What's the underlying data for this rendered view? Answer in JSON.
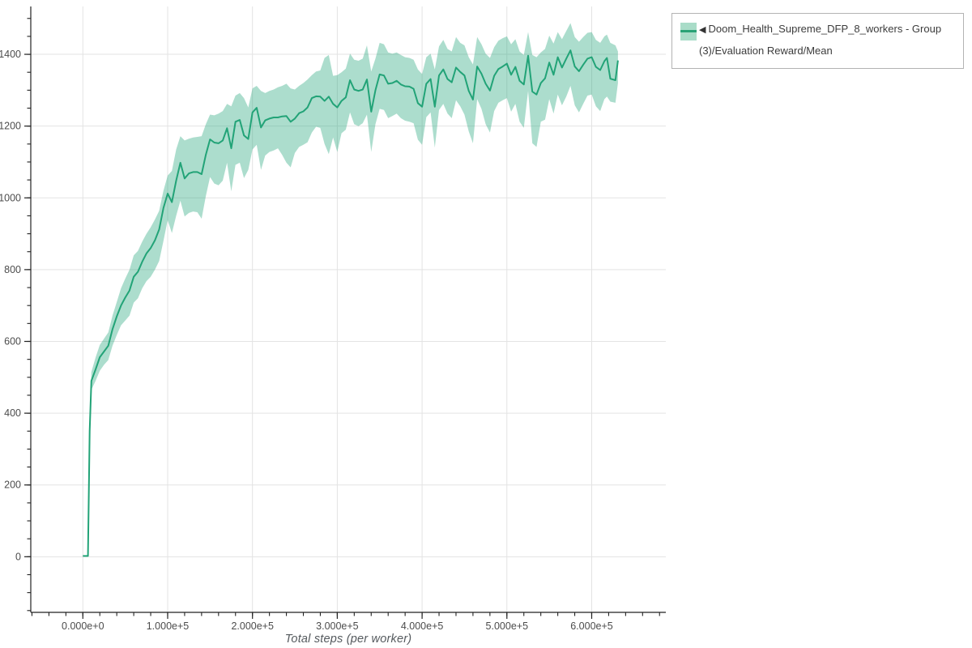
{
  "window": {
    "background": "#ffffff"
  },
  "legend": {
    "marker": "◀",
    "label": "Doom_Health_Supreme_DFP_8_workers - Group(3)/Evaluation Reward/Mean",
    "swatch_band_color": "#a9dcc8",
    "swatch_line_color": "#2aa276",
    "border_color": "#b3b3b3"
  },
  "chart_data": {
    "type": "line",
    "title": "",
    "xlabel": "Total steps (per worker)",
    "ylabel": "",
    "grid": true,
    "legend_position": "top-right-outside",
    "line_color": "#22a377",
    "band_color": "#26a67c",
    "band_opacity": 0.38,
    "grid_color": "#e3e3e3",
    "axis_color": "#222222",
    "tick_label_color": "#4c4c4c",
    "xlim": [
      -61400,
      687400
    ],
    "ylim": [
      -155,
      1522
    ],
    "x_minor_step": 20000,
    "y_minor_step": 50,
    "x_major_ticks": {
      "values": [
        0,
        100000,
        200000,
        300000,
        400000,
        500000,
        600000
      ],
      "labels": [
        "0.000e+0",
        "1.000e+5",
        "2.000e+5",
        "3.000e+5",
        "4.000e+5",
        "5.000e+5",
        "6.000e+5"
      ]
    },
    "y_major_ticks": {
      "values": [
        0,
        200,
        400,
        600,
        800,
        1000,
        1200,
        1400
      ],
      "labels": [
        "0",
        "200",
        "400",
        "600",
        "800",
        "1000",
        "1200",
        "1400"
      ]
    },
    "series": [
      {
        "name": "Doom_Health_Supreme_DFP_8_workers - Group(3)/Evaluation Reward/Mean",
        "x": [
          0,
          4000,
          6000,
          8000,
          10000,
          15000,
          20000,
          25000,
          30000,
          35000,
          40000,
          45000,
          50000,
          55000,
          60000,
          65000,
          70000,
          75000,
          80000,
          85000,
          90000,
          95000,
          100000,
          105000,
          110000,
          115000,
          120000,
          125000,
          130000,
          135000,
          140000,
          145000,
          150000,
          155000,
          160000,
          165000,
          170000,
          175000,
          180000,
          185000,
          190000,
          195000,
          200000,
          205000,
          210000,
          215000,
          220000,
          225000,
          230000,
          235000,
          240000,
          245000,
          250000,
          255000,
          260000,
          265000,
          270000,
          275000,
          280000,
          285000,
          290000,
          295000,
          300000,
          305000,
          310000,
          315000,
          320000,
          325000,
          330000,
          335000,
          340000,
          345000,
          350000,
          355000,
          360000,
          365000,
          370000,
          375000,
          380000,
          385000,
          390000,
          395000,
          400000,
          405000,
          410000,
          415000,
          420000,
          425000,
          430000,
          435000,
          440000,
          445000,
          450000,
          455000,
          460000,
          465000,
          470000,
          475000,
          480000,
          485000,
          490000,
          495000,
          500000,
          505000,
          510000,
          515000,
          520000,
          525000,
          530000,
          535000,
          540000,
          545000,
          550000,
          555000,
          560000,
          565000,
          570000,
          575000,
          580000,
          585000,
          590000,
          595000,
          600000,
          605000,
          610000,
          615000,
          618000,
          622000,
          628000,
          631000
        ],
        "mean": [
          2,
          2,
          2,
          350,
          490,
          522,
          556,
          572,
          588,
          634,
          670,
          700,
          722,
          742,
          780,
          794,
          822,
          845,
          860,
          882,
          912,
          972,
          1012,
          988,
          1048,
          1098,
          1054,
          1068,
          1072,
          1072,
          1066,
          1120,
          1163,
          1154,
          1152,
          1160,
          1194,
          1138,
          1212,
          1217,
          1174,
          1164,
          1238,
          1251,
          1196,
          1216,
          1221,
          1224,
          1224,
          1227,
          1228,
          1212,
          1221,
          1236,
          1241,
          1252,
          1278,
          1283,
          1282,
          1270,
          1282,
          1262,
          1252,
          1270,
          1280,
          1328,
          1302,
          1298,
          1302,
          1330,
          1240,
          1300,
          1344,
          1341,
          1318,
          1320,
          1326,
          1316,
          1311,
          1310,
          1304,
          1264,
          1254,
          1318,
          1331,
          1254,
          1341,
          1358,
          1331,
          1322,
          1363,
          1351,
          1341,
          1298,
          1274,
          1366,
          1346,
          1318,
          1299,
          1340,
          1359,
          1366,
          1374,
          1343,
          1365,
          1326,
          1316,
          1396,
          1296,
          1288,
          1320,
          1333,
          1377,
          1343,
          1392,
          1363,
          1388,
          1411,
          1366,
          1353,
          1371,
          1388,
          1392,
          1365,
          1356,
          1381,
          1390,
          1332,
          1328,
          1383
        ],
        "lo": [
          2,
          2,
          2,
          330,
          465,
          490,
          518,
          535,
          548,
          588,
          618,
          645,
          658,
          672,
          708,
          720,
          748,
          768,
          780,
          800,
          824,
          880,
          938,
          902,
          950,
          992,
          948,
          958,
          962,
          960,
          942,
          1005,
          1058,
          1040,
          1035,
          1048,
          1098,
          1018,
          1092,
          1098,
          1055,
          1078,
          1135,
          1148,
          1078,
          1118,
          1128,
          1132,
          1138,
          1120,
          1098,
          1085,
          1125,
          1142,
          1148,
          1155,
          1182,
          1198,
          1195,
          1150,
          1122,
          1168,
          1128,
          1180,
          1190,
          1238,
          1205,
          1200,
          1208,
          1232,
          1128,
          1205,
          1248,
          1245,
          1222,
          1228,
          1235,
          1222,
          1215,
          1212,
          1208,
          1162,
          1148,
          1225,
          1238,
          1140,
          1245,
          1262,
          1235,
          1222,
          1272,
          1255,
          1232,
          1185,
          1152,
          1275,
          1248,
          1205,
          1182,
          1242,
          1265,
          1272,
          1278,
          1240,
          1262,
          1212,
          1195,
          1298,
          1152,
          1142,
          1212,
          1218,
          1275,
          1235,
          1288,
          1258,
          1282,
          1312,
          1258,
          1238,
          1262,
          1285,
          1288,
          1255,
          1242,
          1275,
          1282,
          1268,
          1265,
          1320
        ],
        "hi": [
          2,
          2,
          2,
          370,
          515,
          555,
          590,
          608,
          625,
          672,
          710,
          748,
          775,
          800,
          840,
          852,
          878,
          900,
          918,
          940,
          964,
          1020,
          1062,
          1075,
          1135,
          1172,
          1160,
          1165,
          1168,
          1170,
          1172,
          1205,
          1232,
          1230,
          1235,
          1242,
          1262,
          1255,
          1285,
          1292,
          1278,
          1252,
          1305,
          1312,
          1298,
          1292,
          1298,
          1302,
          1308,
          1312,
          1318,
          1305,
          1302,
          1312,
          1320,
          1330,
          1342,
          1352,
          1355,
          1390,
          1398,
          1340,
          1342,
          1350,
          1360,
          1402,
          1385,
          1382,
          1388,
          1425,
          1352,
          1388,
          1432,
          1428,
          1405,
          1402,
          1405,
          1398,
          1392,
          1390,
          1385,
          1358,
          1345,
          1392,
          1402,
          1358,
          1422,
          1440,
          1415,
          1408,
          1448,
          1432,
          1425,
          1392,
          1372,
          1448,
          1428,
          1402,
          1390,
          1420,
          1438,
          1445,
          1450,
          1428,
          1442,
          1408,
          1398,
          1462,
          1398,
          1392,
          1405,
          1415,
          1452,
          1430,
          1462,
          1442,
          1465,
          1487,
          1448,
          1435,
          1448,
          1460,
          1462,
          1440,
          1432,
          1450,
          1455,
          1432,
          1425,
          1408
        ]
      }
    ]
  }
}
